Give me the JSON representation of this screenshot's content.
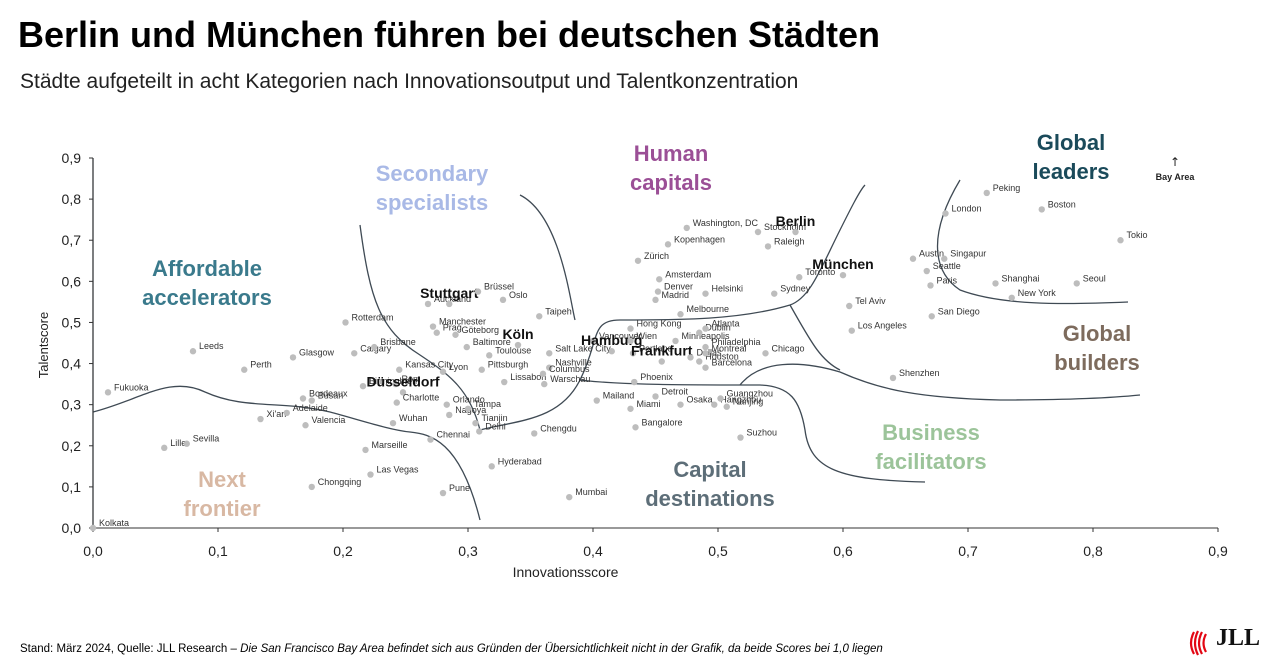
{
  "header": {
    "title": "Berlin und München führen bei deutschen Städten",
    "subtitle": "Städte aufgeteilt in acht Kategorien nach Innovationsoutput und Talentkonzentration"
  },
  "footer": {
    "source": "Stand: März 2024, Quelle: JLL Research –",
    "note": "Die San Francisco Bay Area befindet sich aus Gründen der Übersichtlichkeit nicht in der Grafik, da beide Scores bei 1,0 liegen"
  },
  "logo": {
    "text": "JLL"
  },
  "colors": {
    "accent_logo": "#e30613"
  },
  "chart_data": {
    "type": "scatter",
    "xlabel": "Innovationsscore",
    "ylabel": "Talentscore",
    "xlim": [
      0,
      0.9
    ],
    "ylim": [
      0,
      0.9
    ],
    "xticks": [
      "0,0",
      "0,1",
      "0,2",
      "0,3",
      "0,4",
      "0,5",
      "0,6",
      "0,7",
      "0,8",
      "0,9"
    ],
    "yticks": [
      "0,0",
      "0,1",
      "0,2",
      "0,3",
      "0,4",
      "0,5",
      "0,6",
      "0,7",
      "0,8",
      "0,9"
    ],
    "categories": [
      {
        "name": "Global leaders",
        "lines": [
          "Global",
          "leaders"
        ],
        "color": "#1a4a5a"
      },
      {
        "name": "Human capitals",
        "lines": [
          "Human",
          "capitals"
        ],
        "color": "#9b4f96"
      },
      {
        "name": "Secondary specialists",
        "lines": [
          "Secondary",
          "specialists"
        ],
        "color": "#a9b9e6"
      },
      {
        "name": "Affordable accelerators",
        "lines": [
          "Affordable",
          "accelerators"
        ],
        "color": "#3a7a8c"
      },
      {
        "name": "Global builders",
        "lines": [
          "Global",
          "builders"
        ],
        "color": "#7d6b5d"
      },
      {
        "name": "Business facilitators",
        "lines": [
          "Business",
          "facilitators"
        ],
        "color": "#9cc49a"
      },
      {
        "name": "Capital destinations",
        "lines": [
          "Capital",
          "destinations"
        ],
        "color": "#5d6e78"
      },
      {
        "name": "Next frontier",
        "lines": [
          "Next",
          "frontier"
        ],
        "color": "#d8b8a3"
      }
    ],
    "offchart_note": "Bay Area",
    "points": [
      {
        "label": "Kolkata",
        "x": 0.0,
        "y": 0.0
      },
      {
        "label": "Fukuoka",
        "x": 0.012,
        "y": 0.33
      },
      {
        "label": "Lille",
        "x": 0.057,
        "y": 0.195
      },
      {
        "label": "Sevilla",
        "x": 0.075,
        "y": 0.205
      },
      {
        "label": "Leeds",
        "x": 0.08,
        "y": 0.43
      },
      {
        "label": "Perth",
        "x": 0.121,
        "y": 0.385
      },
      {
        "label": "Xi'an",
        "x": 0.134,
        "y": 0.265
      },
      {
        "label": "Glasgow",
        "x": 0.16,
        "y": 0.415
      },
      {
        "label": "Bordeaux",
        "x": 0.168,
        "y": 0.315
      },
      {
        "label": "Adelaide",
        "x": 0.155,
        "y": 0.28
      },
      {
        "label": "Busan",
        "x": 0.175,
        "y": 0.31
      },
      {
        "label": "Valencia",
        "x": 0.17,
        "y": 0.25
      },
      {
        "label": "Chongqing",
        "x": 0.175,
        "y": 0.1
      },
      {
        "label": "Calgary",
        "x": 0.209,
        "y": 0.425
      },
      {
        "label": "Brisbane",
        "x": 0.225,
        "y": 0.44
      },
      {
        "label": "Rotterdam",
        "x": 0.202,
        "y": 0.5
      },
      {
        "label": "Birmingham",
        "x": 0.216,
        "y": 0.345
      },
      {
        "label": "Kansas City",
        "x": 0.245,
        "y": 0.385
      },
      {
        "label": "Rom",
        "x": 0.242,
        "y": 0.35
      },
      {
        "label": "Marseille",
        "x": 0.218,
        "y": 0.19
      },
      {
        "label": "Las Vegas",
        "x": 0.222,
        "y": 0.13
      },
      {
        "label": "Düsseldorf",
        "x": 0.248,
        "y": 0.33,
        "bold": true
      },
      {
        "label": "Charlotte",
        "x": 0.243,
        "y": 0.305
      },
      {
        "label": "Wuhan",
        "x": 0.24,
        "y": 0.255
      },
      {
        "label": "Chennai",
        "x": 0.27,
        "y": 0.215
      },
      {
        "label": "Pune",
        "x": 0.28,
        "y": 0.085
      },
      {
        "label": "Auckland",
        "x": 0.268,
        "y": 0.545
      },
      {
        "label": "Manchester",
        "x": 0.272,
        "y": 0.49
      },
      {
        "label": "Prag",
        "x": 0.275,
        "y": 0.475
      },
      {
        "label": "Stuttgart",
        "x": 0.285,
        "y": 0.545,
        "bold": true
      },
      {
        "label": "Lyon",
        "x": 0.28,
        "y": 0.38
      },
      {
        "label": "Göteborg",
        "x": 0.29,
        "y": 0.47
      },
      {
        "label": "Baltimore",
        "x": 0.299,
        "y": 0.44
      },
      {
        "label": "Orlando",
        "x": 0.283,
        "y": 0.3
      },
      {
        "label": "Nagoya",
        "x": 0.285,
        "y": 0.275
      },
      {
        "label": "Tampa",
        "x": 0.3,
        "y": 0.29
      },
      {
        "label": "Tianjin",
        "x": 0.306,
        "y": 0.255
      },
      {
        "label": "Delhi",
        "x": 0.309,
        "y": 0.235
      },
      {
        "label": "Hyderabad",
        "x": 0.319,
        "y": 0.15
      },
      {
        "label": "Brüssel",
        "x": 0.308,
        "y": 0.575
      },
      {
        "label": "Oslo",
        "x": 0.328,
        "y": 0.555
      },
      {
        "label": "Pittsburgh",
        "x": 0.311,
        "y": 0.385
      },
      {
        "label": "Toulouse",
        "x": 0.317,
        "y": 0.42
      },
      {
        "label": "Köln",
        "x": 0.34,
        "y": 0.445,
        "bold": true
      },
      {
        "label": "Lissabon",
        "x": 0.329,
        "y": 0.355
      },
      {
        "label": "Taipeh",
        "x": 0.357,
        "y": 0.515
      },
      {
        "label": "Salt Lake City",
        "x": 0.365,
        "y": 0.425
      },
      {
        "label": "Nashville",
        "x": 0.365,
        "y": 0.39
      },
      {
        "label": "Columbus",
        "x": 0.36,
        "y": 0.375
      },
      {
        "label": "Warschau",
        "x": 0.361,
        "y": 0.35
      },
      {
        "label": "Chengdu",
        "x": 0.353,
        "y": 0.23
      },
      {
        "label": "Mumbai",
        "x": 0.381,
        "y": 0.075
      },
      {
        "label": "Mailand",
        "x": 0.403,
        "y": 0.31
      },
      {
        "label": "Vancouver",
        "x": 0.4,
        "y": 0.455
      },
      {
        "label": "Hamburg",
        "x": 0.415,
        "y": 0.43,
        "bold": true
      },
      {
        "label": "Hong Kong",
        "x": 0.43,
        "y": 0.485
      },
      {
        "label": "Wien",
        "x": 0.43,
        "y": 0.455
      },
      {
        "label": "Portland",
        "x": 0.432,
        "y": 0.425
      },
      {
        "label": "Phoenix",
        "x": 0.433,
        "y": 0.355
      },
      {
        "label": "Miami",
        "x": 0.43,
        "y": 0.29
      },
      {
        "label": "Bangalore",
        "x": 0.434,
        "y": 0.245
      },
      {
        "label": "Amsterdam",
        "x": 0.453,
        "y": 0.605
      },
      {
        "label": "Denver",
        "x": 0.452,
        "y": 0.575
      },
      {
        "label": "Madrid",
        "x": 0.45,
        "y": 0.555
      },
      {
        "label": "Frankfurt",
        "x": 0.455,
        "y": 0.405,
        "bold": true
      },
      {
        "label": "Detroit",
        "x": 0.45,
        "y": 0.32
      },
      {
        "label": "Osaka",
        "x": 0.47,
        "y": 0.3
      },
      {
        "label": "Zürich",
        "x": 0.436,
        "y": 0.65
      },
      {
        "label": "Kopenhagen",
        "x": 0.46,
        "y": 0.69
      },
      {
        "label": "Washington, DC",
        "x": 0.475,
        "y": 0.73
      },
      {
        "label": "Melbourne",
        "x": 0.47,
        "y": 0.52
      },
      {
        "label": "Minneapolis",
        "x": 0.466,
        "y": 0.455
      },
      {
        "label": "Dublin",
        "x": 0.485,
        "y": 0.475
      },
      {
        "label": "Dallas",
        "x": 0.478,
        "y": 0.415
      },
      {
        "label": "Houston",
        "x": 0.485,
        "y": 0.405
      },
      {
        "label": "Barcelona",
        "x": 0.49,
        "y": 0.39
      },
      {
        "label": "Atlanta",
        "x": 0.49,
        "y": 0.485
      },
      {
        "label": "Philadelphia",
        "x": 0.49,
        "y": 0.44
      },
      {
        "label": "Montreal",
        "x": 0.49,
        "y": 0.425
      },
      {
        "label": "Helsinki",
        "x": 0.49,
        "y": 0.57
      },
      {
        "label": "Hangzhou",
        "x": 0.497,
        "y": 0.3
      },
      {
        "label": "Guangzhou",
        "x": 0.502,
        "y": 0.315
      },
      {
        "label": "Nanjing",
        "x": 0.507,
        "y": 0.295
      },
      {
        "label": "Suzhou",
        "x": 0.518,
        "y": 0.22
      },
      {
        "label": "Stockholm",
        "x": 0.532,
        "y": 0.72
      },
      {
        "label": "Raleigh",
        "x": 0.54,
        "y": 0.685
      },
      {
        "label": "Berlin",
        "x": 0.562,
        "y": 0.72,
        "bold": true
      },
      {
        "label": "Sydney",
        "x": 0.545,
        "y": 0.57
      },
      {
        "label": "Chicago",
        "x": 0.538,
        "y": 0.425
      },
      {
        "label": "Toronto",
        "x": 0.565,
        "y": 0.61
      },
      {
        "label": "München",
        "x": 0.6,
        "y": 0.615,
        "bold": true
      },
      {
        "label": "Tel Aviv",
        "x": 0.605,
        "y": 0.54
      },
      {
        "label": "Los Angeles",
        "x": 0.607,
        "y": 0.48
      },
      {
        "label": "Shenzhen",
        "x": 0.64,
        "y": 0.365
      },
      {
        "label": "Austin",
        "x": 0.656,
        "y": 0.655
      },
      {
        "label": "Seattle",
        "x": 0.667,
        "y": 0.625
      },
      {
        "label": "Singapur",
        "x": 0.681,
        "y": 0.655
      },
      {
        "label": "Paris",
        "x": 0.67,
        "y": 0.59
      },
      {
        "label": "San Diego",
        "x": 0.671,
        "y": 0.515
      },
      {
        "label": "London",
        "x": 0.682,
        "y": 0.765
      },
      {
        "label": "Peking",
        "x": 0.715,
        "y": 0.815
      },
      {
        "label": "Shanghai",
        "x": 0.722,
        "y": 0.595
      },
      {
        "label": "New York",
        "x": 0.735,
        "y": 0.56
      },
      {
        "label": "Boston",
        "x": 0.759,
        "y": 0.775
      },
      {
        "label": "Seoul",
        "x": 0.787,
        "y": 0.595
      },
      {
        "label": "Tokio",
        "x": 0.822,
        "y": 0.7
      }
    ]
  }
}
